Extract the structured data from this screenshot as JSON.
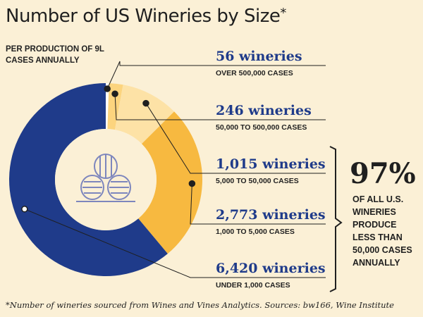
{
  "header": {
    "title": "Number of US Wineries by Size",
    "title_mark": "*",
    "subtitle": "PER PRODUCTION OF 9L CASES ANNUALLY"
  },
  "callout": {
    "percent": "97%",
    "text": "OF ALL U.S. WINERIES PRODUCE LESS THAN 50,000 CASES ANNUALLY"
  },
  "footnote": "*Number of wineries sourced from Wines and Vines Analytics. Sources: bw166, Wine Institute",
  "colors": {
    "dark_blue": "#1f3b8a",
    "orange": "#f7b940",
    "light_orange": "#fcd47e",
    "pale": "#fde2a6",
    "white": "#ffffff",
    "inner_circle": "#fbf0d6",
    "barrel_outline": "#7d86bd"
  },
  "icon": "wine-barrels-icon",
  "chart_data": {
    "type": "pie",
    "categories": [
      "Over 500,000 cases",
      "50,000 to 500,000 cases",
      "5,000 to 50,000 cases",
      "1,000 to 5,000 cases",
      "Under 1,000 cases"
    ],
    "values": [
      56,
      246,
      1015,
      2773,
      6420
    ],
    "labels": [
      {
        "count": "56 wineries",
        "size": "OVER 500,000 CASES"
      },
      {
        "count": "246 wineries",
        "size": "50,000 TO 500,000 CASES"
      },
      {
        "count": "1,015 wineries",
        "size": "5,000 TO 50,000 CASES"
      },
      {
        "count": "2,773 wineries",
        "size": "1,000 TO 5,000 CASES"
      },
      {
        "count": "6,420 wineries",
        "size": "UNDER 1,000 CASES"
      }
    ],
    "segment_colors": [
      "#ffffff",
      "#fcd47e",
      "#fde2a6",
      "#f7b940",
      "#1f3b8a"
    ]
  }
}
